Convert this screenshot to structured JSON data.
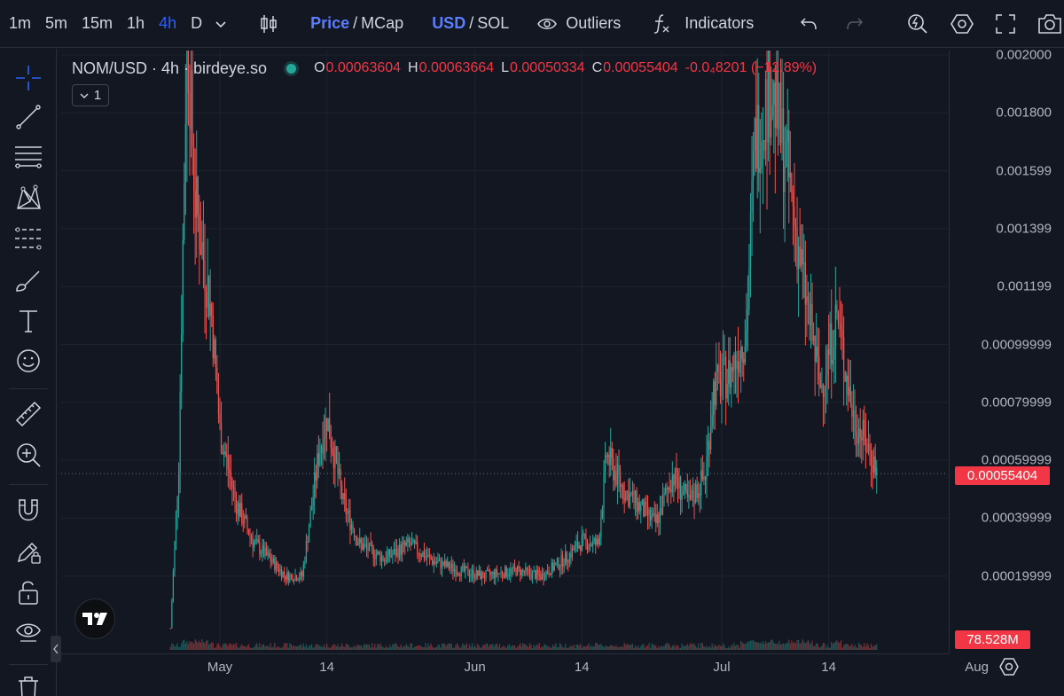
{
  "toolbar": {
    "timeframes": [
      "1m",
      "5m",
      "15m",
      "1h",
      "4h",
      "D"
    ],
    "active_timeframe": "4h",
    "price_label": "Price",
    "mcap_label": "MCap",
    "usd_label": "USD",
    "sol_label": "SOL",
    "slash": "/",
    "outliers_label": "Outliers",
    "indicators_label": "Indicators",
    "accent_color": "#2962ff"
  },
  "legend": {
    "symbol": "NOM/USD · 4h · birdeye.so",
    "o_key": "O",
    "o_value": "0.00063604",
    "h_key": "H",
    "h_value": "0.00063664",
    "l_key": "L",
    "l_value": "0.00050334",
    "c_key": "C",
    "c_value": "0.00055404",
    "change": "-0.0₄8201 (−12.89%)",
    "indicator_count": "1",
    "status_color": "#26a69a"
  },
  "price_axis": {
    "labels": [
      {
        "text": "0.002000",
        "value": 0.002
      },
      {
        "text": "0.001800",
        "value": 0.0018
      },
      {
        "text": "0.001599",
        "value": 0.0016
      },
      {
        "text": "0.001399",
        "value": 0.0014
      },
      {
        "text": "0.001199",
        "value": 0.0012
      },
      {
        "text": "0.00099999",
        "value": 0.001
      },
      {
        "text": "0.00079999",
        "value": 0.0008
      },
      {
        "text": "0.00059999",
        "value": 0.0006
      },
      {
        "text": "0.00039999",
        "value": 0.0004
      },
      {
        "text": "0.00019999",
        "value": 0.0002
      }
    ],
    "last_price": "0.00055404",
    "volume_tag": "78.528M"
  },
  "time_axis": {
    "labels": [
      "May",
      "14",
      "Jun",
      "14",
      "Jul",
      "14",
      "Aug"
    ]
  },
  "chart_data": {
    "type": "candlestick",
    "symbol": "NOM/USD",
    "interval": "4h",
    "ylim": [
      0.0,
      0.002
    ],
    "last_price": 0.00055404,
    "up_color": "#26a69a",
    "down_color": "#ef5350",
    "approx_close_path": [
      {
        "x": "Apr 25",
        "y": 2e-05
      },
      {
        "x": "Apr 26",
        "y": 0.0006
      },
      {
        "x": "Apr 27",
        "y": 0.0021
      },
      {
        "x": "Apr 28",
        "y": 0.0015
      },
      {
        "x": "Apr 30",
        "y": 0.0011
      },
      {
        "x": "May 1",
        "y": 0.0007
      },
      {
        "x": "May 3",
        "y": 0.00045
      },
      {
        "x": "May 5",
        "y": 0.00032
      },
      {
        "x": "May 7",
        "y": 0.00026
      },
      {
        "x": "May 9",
        "y": 0.0002
      },
      {
        "x": "May 11",
        "y": 0.0002
      },
      {
        "x": "May 13",
        "y": 0.00062
      },
      {
        "x": "May 14",
        "y": 0.00075
      },
      {
        "x": "May 16",
        "y": 0.00045
      },
      {
        "x": "May 18",
        "y": 0.00031
      },
      {
        "x": "May 21",
        "y": 0.00026
      },
      {
        "x": "May 24",
        "y": 0.00031
      },
      {
        "x": "May 27",
        "y": 0.00025
      },
      {
        "x": "May 30",
        "y": 0.00022
      },
      {
        "x": "Jun 2",
        "y": 0.0002
      },
      {
        "x": "Jun 6",
        "y": 0.00022
      },
      {
        "x": "Jun 9",
        "y": 0.0002
      },
      {
        "x": "Jun 12",
        "y": 0.00026
      },
      {
        "x": "Jun 14",
        "y": 0.00032
      },
      {
        "x": "Jun 16",
        "y": 0.00031
      },
      {
        "x": "Jun 17",
        "y": 0.00062
      },
      {
        "x": "Jun 19",
        "y": 0.0005
      },
      {
        "x": "Jun 21",
        "y": 0.00044
      },
      {
        "x": "Jun 23",
        "y": 0.00038
      },
      {
        "x": "Jun 25",
        "y": 0.00055
      },
      {
        "x": "Jun 27",
        "y": 0.00045
      },
      {
        "x": "Jun 29",
        "y": 0.00055
      },
      {
        "x": "Jun 30",
        "y": 0.00085
      },
      {
        "x": "Jul 2",
        "y": 0.0009
      },
      {
        "x": "Jul 4",
        "y": 0.00105
      },
      {
        "x": "Jul 5",
        "y": 0.0017
      },
      {
        "x": "Jul 7",
        "y": 0.0019
      },
      {
        "x": "Jul 9",
        "y": 0.0016
      },
      {
        "x": "Jul 11",
        "y": 0.0012
      },
      {
        "x": "Jul 13",
        "y": 0.00085
      },
      {
        "x": "Jul 15",
        "y": 0.0011
      },
      {
        "x": "Jul 17",
        "y": 0.00075
      },
      {
        "x": "Jul 19",
        "y": 0.00063
      },
      {
        "x": "Jul 20",
        "y": 0.00055
      }
    ]
  }
}
